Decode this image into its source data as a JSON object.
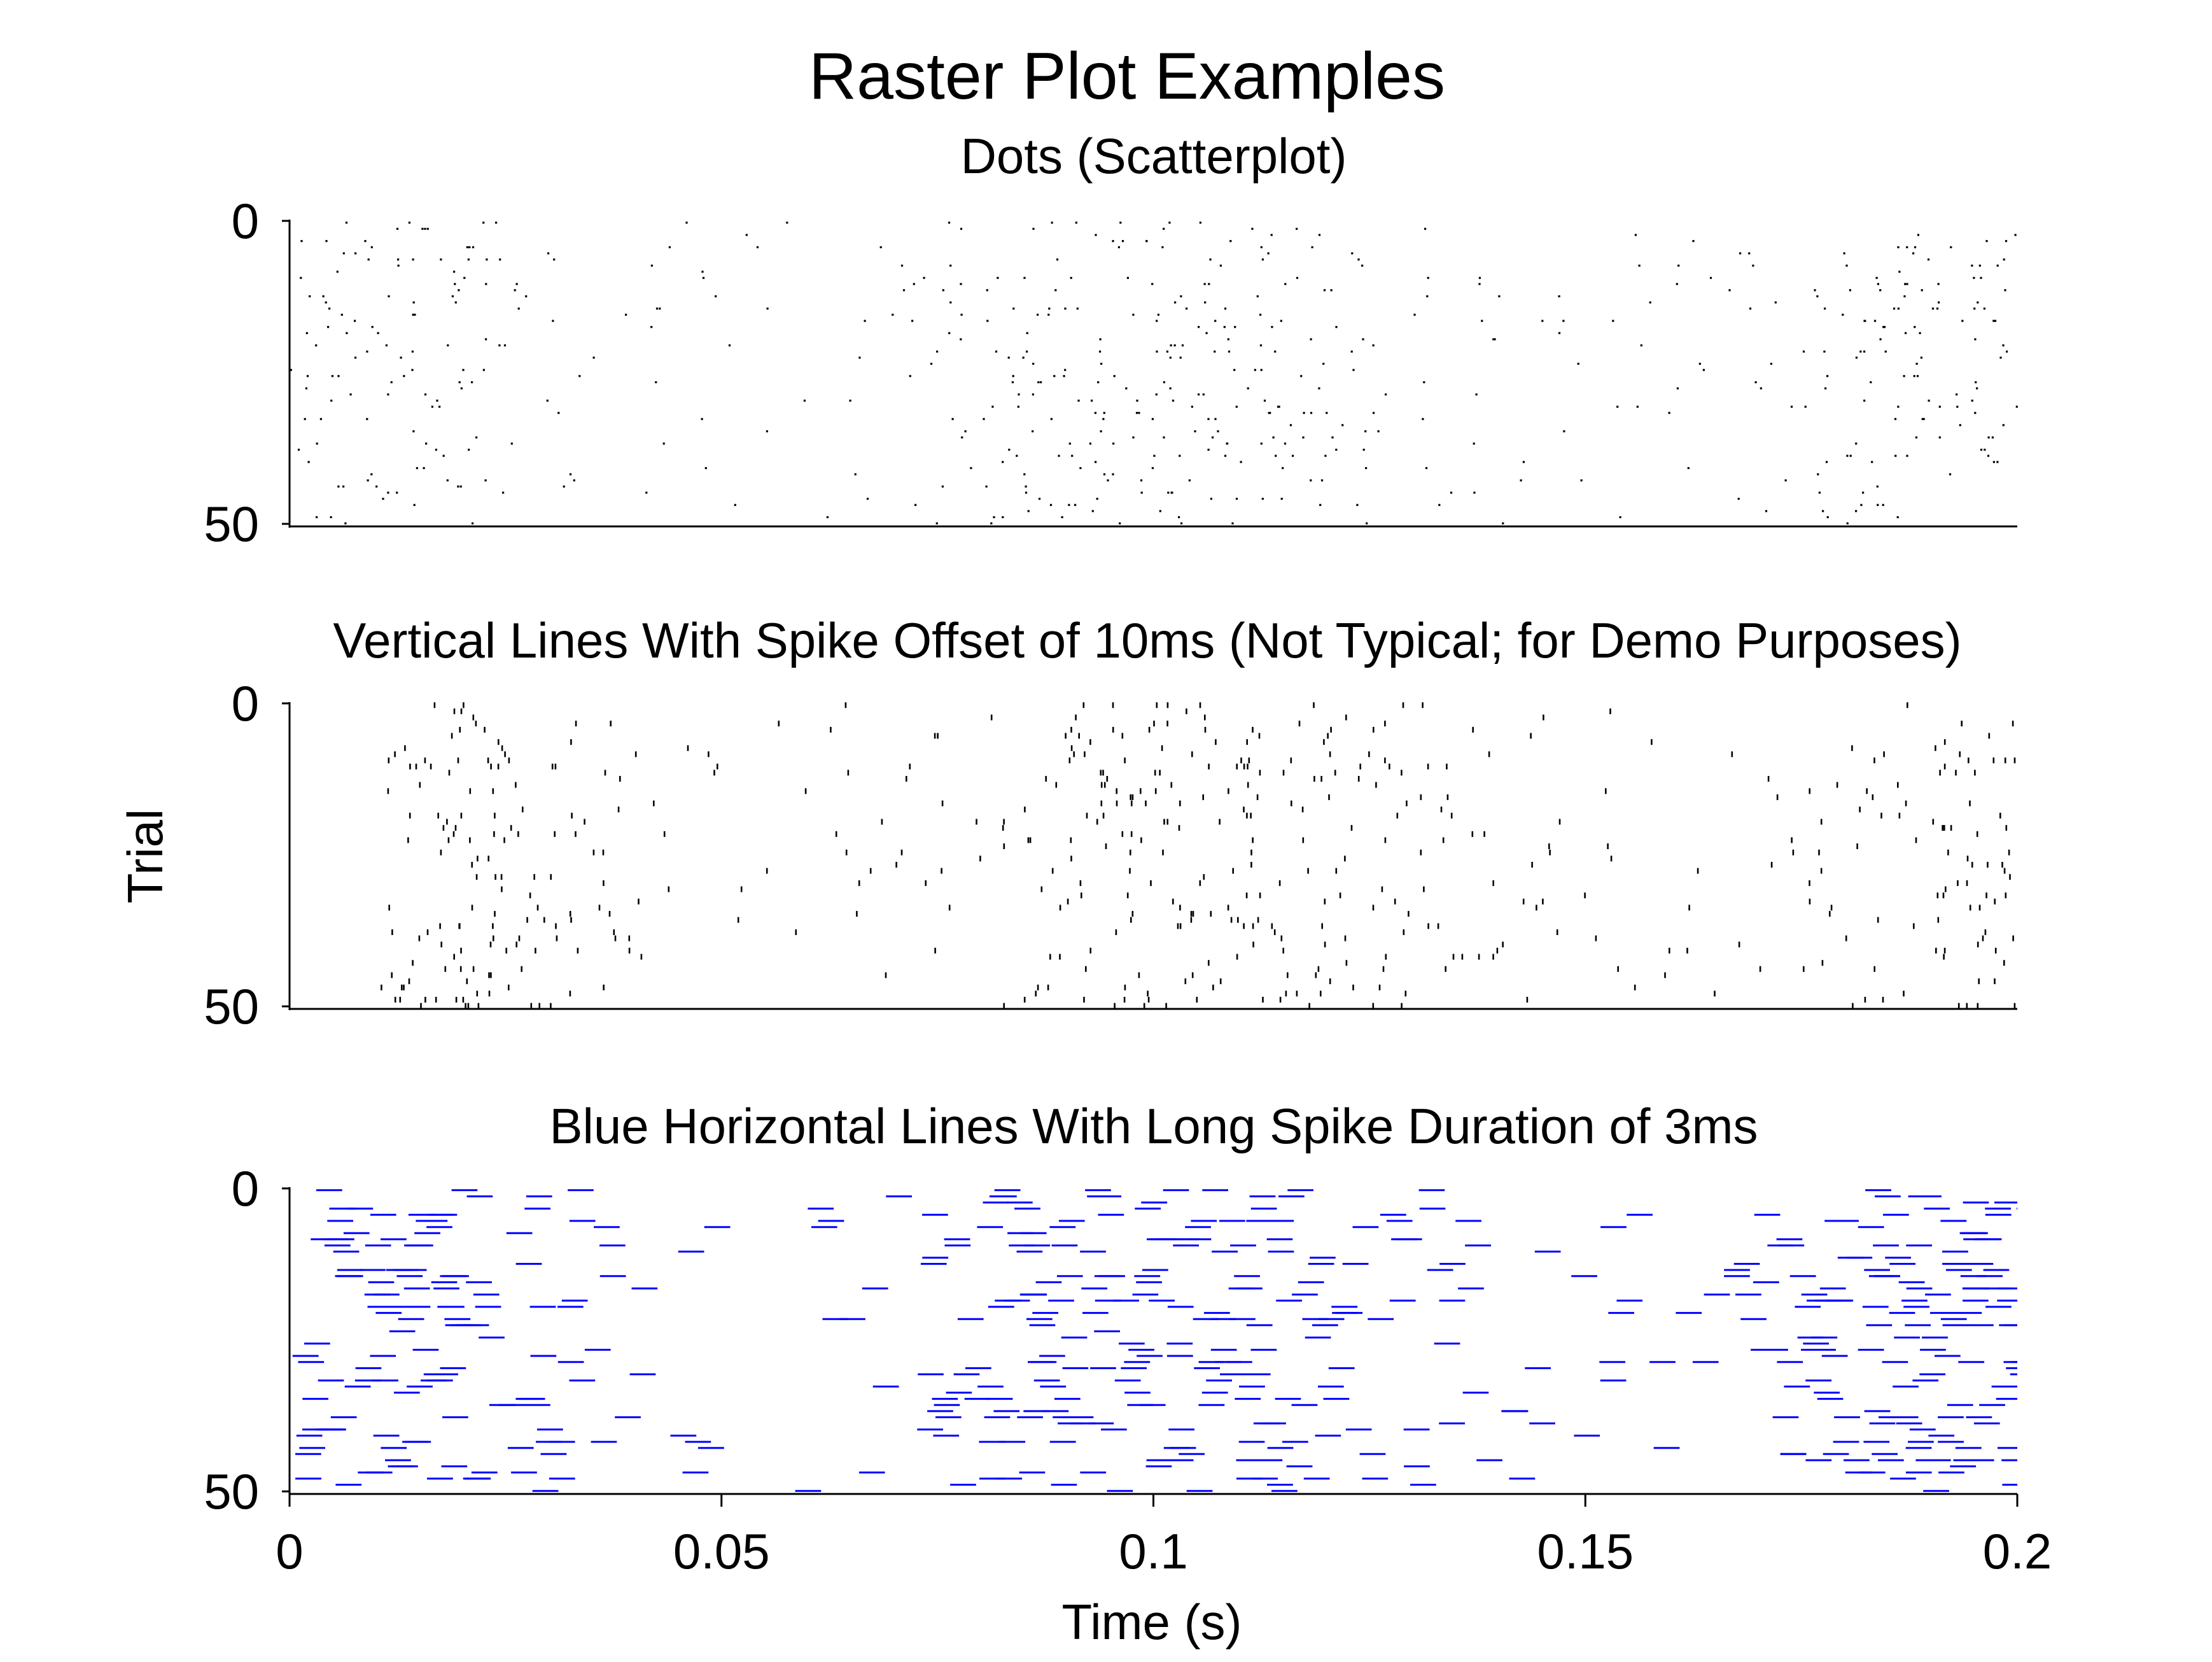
{
  "figure_title": "Raster Plot Examples",
  "shared_ylabel": "Trial",
  "shared_xlabel": "Time (s)",
  "chart_data": [
    {
      "type": "scatter",
      "style": "dots",
      "title": "Dots (Scatterplot)",
      "xlabel": "",
      "ylabel": "",
      "xlim": [
        0,
        0.2
      ],
      "ylim": [
        0,
        50
      ],
      "y_inverted": true,
      "yticks": [
        "0",
        "50"
      ],
      "xticks": [],
      "color": "#000000",
      "spike_duration_s": 0,
      "spike_offset_s": 0,
      "n_trials": 50,
      "spike_times_s": []
    },
    {
      "type": "scatter",
      "style": "vertical-lines",
      "title": "Vertical Lines With Spike Offset of 10ms (Not Typical; for Demo Purposes)",
      "xlabel": "",
      "ylabel": "Trial",
      "xlim": [
        0,
        0.2
      ],
      "ylim": [
        0,
        50
      ],
      "y_inverted": true,
      "yticks": [
        "0",
        "50"
      ],
      "xticks": [],
      "color": "#000000",
      "spike_duration_s": 0,
      "spike_offset_s": 0.01,
      "n_trials": 50,
      "spike_times_s": []
    },
    {
      "type": "scatter",
      "style": "horizontal-lines",
      "title": "Blue Horizontal Lines With Long Spike Duration of 3ms",
      "xlabel": "Time (s)",
      "ylabel": "",
      "xlim": [
        0,
        0.2
      ],
      "ylim": [
        0,
        50
      ],
      "y_inverted": true,
      "yticks": [
        "0",
        "50"
      ],
      "xticks": [
        "0",
        "0.05",
        "0.1",
        "0.15",
        "0.2"
      ],
      "color": "#0000ff",
      "spike_duration_s": 0.003,
      "spike_offset_s": 0,
      "n_trials": 50,
      "spike_times_s": []
    }
  ]
}
